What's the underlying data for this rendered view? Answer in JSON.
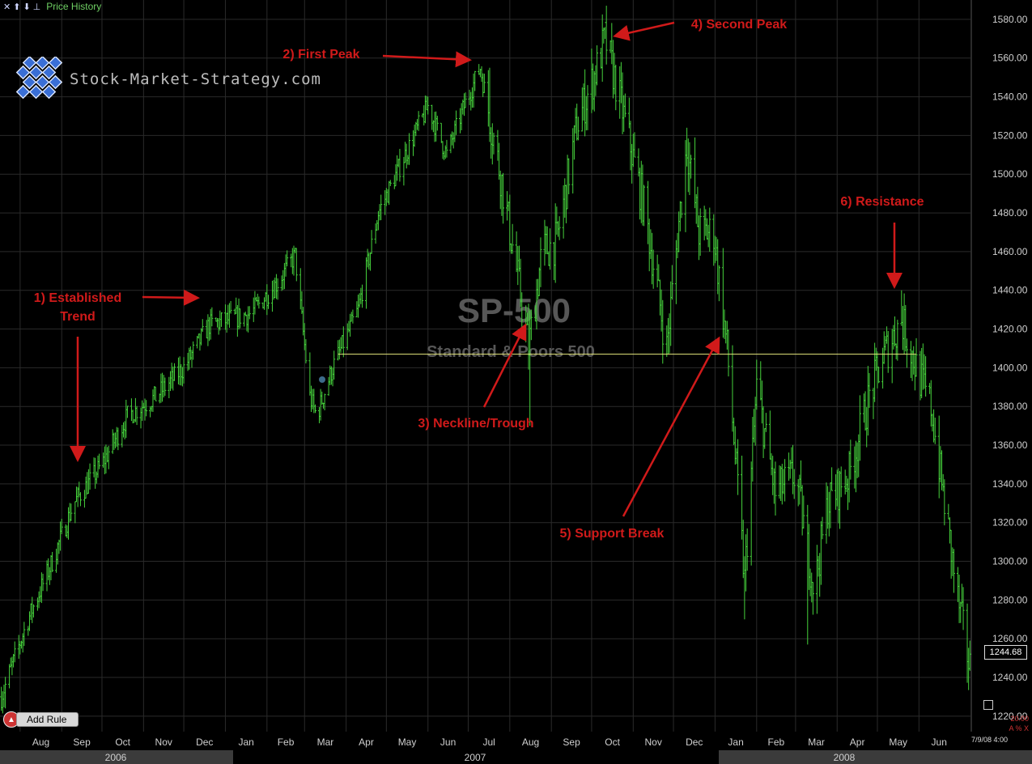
{
  "toolbar": {
    "close_icon": "close-icon",
    "up_icon": "arrow-up-icon",
    "down_icon": "arrow-down-icon",
    "pin_icon": "pin-icon",
    "title": "Price History"
  },
  "logo": {
    "text": "Stock-Market-Strategy.com"
  },
  "add_rule_label": "Add Rule",
  "last_price": "1244.68",
  "datestamp": "7/9/08 4:00",
  "corner_value": "20.00",
  "corner_controls": "A % X",
  "colors": {
    "price": "#46d23c",
    "neckline": "#e6e87c",
    "annotation": "#d01a1a",
    "grid": "#2a2a2a"
  },
  "chart_data": {
    "type": "bar",
    "title": "SP-500",
    "subtitle": "Standard & Poors 500",
    "ylim": [
      1212,
      1590
    ],
    "y_ticks": [
      1220,
      1240,
      1260,
      1280,
      1300,
      1320,
      1340,
      1360,
      1380,
      1400,
      1420,
      1440,
      1460,
      1480,
      1500,
      1520,
      1540,
      1560,
      1580
    ],
    "month_ticks": [
      "Aug",
      "Sep",
      "Oct",
      "Nov",
      "Dec",
      "Jan",
      "Feb",
      "Mar",
      "Apr",
      "May",
      "Jun",
      "Jul",
      "Aug",
      "Sep",
      "Oct",
      "Nov",
      "Dec",
      "Jan",
      "Feb",
      "Mar",
      "Apr",
      "May",
      "Jun"
    ],
    "years": [
      "2006",
      "2007",
      "2008"
    ],
    "grid": true,
    "neckline_level": 1407,
    "series": [
      {
        "anchors": [
          [
            "2006-07-18",
            1230
          ],
          [
            "2006-08-07",
            1270
          ],
          [
            "2006-08-25",
            1300
          ],
          [
            "2006-09-10",
            1330
          ],
          [
            "2006-10-01",
            1350
          ],
          [
            "2006-10-20",
            1375
          ],
          [
            "2006-11-10",
            1385
          ],
          [
            "2006-12-01",
            1400
          ],
          [
            "2006-12-20",
            1422
          ],
          [
            "2007-01-20",
            1428
          ],
          [
            "2007-02-10",
            1445
          ],
          [
            "2007-02-22",
            1458
          ],
          [
            "2007-03-05",
            1385
          ],
          [
            "2007-03-10",
            1375
          ],
          [
            "2007-03-22",
            1400
          ],
          [
            "2007-04-10",
            1430
          ],
          [
            "2007-04-25",
            1480
          ],
          [
            "2007-05-15",
            1510
          ],
          [
            "2007-06-01",
            1535
          ],
          [
            "2007-06-15",
            1510
          ],
          [
            "2007-06-28",
            1535
          ],
          [
            "2007-07-10",
            1555
          ],
          [
            "2007-07-25",
            1500
          ],
          [
            "2007-08-05",
            1455
          ],
          [
            "2007-08-15",
            1410
          ],
          [
            "2007-08-25",
            1460
          ],
          [
            "2007-09-05",
            1465
          ],
          [
            "2007-09-20",
            1525
          ],
          [
            "2007-10-05",
            1555
          ],
          [
            "2007-10-11",
            1570
          ],
          [
            "2007-10-25",
            1530
          ],
          [
            "2007-11-10",
            1480
          ],
          [
            "2007-11-26",
            1410
          ],
          [
            "2007-12-05",
            1475
          ],
          [
            "2007-12-11",
            1515
          ],
          [
            "2007-12-20",
            1470
          ],
          [
            "2007-12-31",
            1470
          ],
          [
            "2008-01-10",
            1410
          ],
          [
            "2008-01-23",
            1290
          ],
          [
            "2008-02-01",
            1390
          ],
          [
            "2008-02-15",
            1335
          ],
          [
            "2008-03-01",
            1345
          ],
          [
            "2008-03-15",
            1285
          ],
          [
            "2008-03-25",
            1330
          ],
          [
            "2008-04-10",
            1345
          ],
          [
            "2008-04-25",
            1385
          ],
          [
            "2008-05-05",
            1405
          ],
          [
            "2008-05-19",
            1425
          ],
          [
            "2008-05-30",
            1400
          ],
          [
            "2008-06-10",
            1380
          ],
          [
            "2008-06-20",
            1330
          ],
          [
            "2008-06-30",
            1280
          ],
          [
            "2008-07-09",
            1244.68
          ]
        ],
        "marked_extremes": [
          [
            "2007-08-16",
            1370
          ],
          [
            "2007-07-17",
            1555
          ],
          [
            "2007-10-11",
            1576
          ],
          [
            "2007-12-11",
            1524
          ],
          [
            "2008-01-23",
            1270
          ],
          [
            "2008-03-10",
            1257
          ],
          [
            "2008-05-19",
            1440
          ],
          [
            "2006-07-21",
            1224
          ]
        ]
      }
    ],
    "annotations": [
      {
        "text": "1) Established\nTrend"
      },
      {
        "text": "2) First Peak"
      },
      {
        "text": "3) Neckline/Trough"
      },
      {
        "text": "4) Second Peak"
      },
      {
        "text": "5) Support Break"
      },
      {
        "text": "6) Resistance"
      }
    ]
  }
}
